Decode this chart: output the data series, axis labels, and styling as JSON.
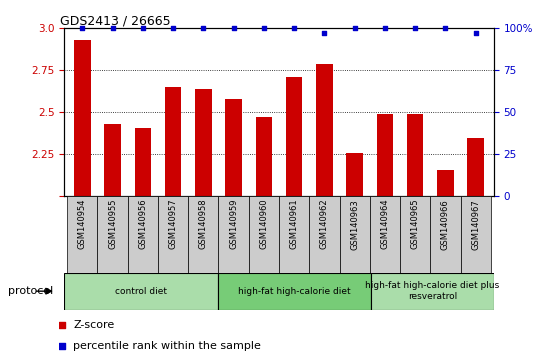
{
  "title": "GDS2413 / 26665",
  "samples": [
    "GSM140954",
    "GSM140955",
    "GSM140956",
    "GSM140957",
    "GSM140958",
    "GSM140959",
    "GSM140960",
    "GSM140961",
    "GSM140962",
    "GSM140963",
    "GSM140964",
    "GSM140965",
    "GSM140966",
    "GSM140967"
  ],
  "zscore": [
    2.93,
    2.43,
    2.41,
    2.65,
    2.64,
    2.58,
    2.47,
    2.71,
    2.79,
    2.26,
    2.49,
    2.49,
    2.16,
    2.35
  ],
  "percentile": [
    100,
    100,
    100,
    100,
    100,
    100,
    100,
    100,
    97,
    100,
    100,
    100,
    100,
    97
  ],
  "ylim_left": [
    2.0,
    3.0
  ],
  "ylim_right": [
    0,
    100
  ],
  "yticks_left": [
    2.0,
    2.25,
    2.5,
    2.75,
    3.0
  ],
  "yticks_right": [
    0,
    25,
    50,
    75,
    100
  ],
  "bar_color": "#cc0000",
  "dot_color": "#0000cc",
  "sample_box_color": "#cccccc",
  "protocol_groups": [
    {
      "label": "control diet",
      "start": 0,
      "end": 5,
      "color": "#aaddaa"
    },
    {
      "label": "high-fat high-calorie diet",
      "start": 5,
      "end": 10,
      "color": "#77cc77"
    },
    {
      "label": "high-fat high-calorie diet plus\nresveratrol",
      "start": 10,
      "end": 14,
      "color": "#aaddaa"
    }
  ],
  "legend_zscore_label": "Z-score",
  "legend_pct_label": "percentile rank within the sample",
  "protocol_label": "protocol"
}
